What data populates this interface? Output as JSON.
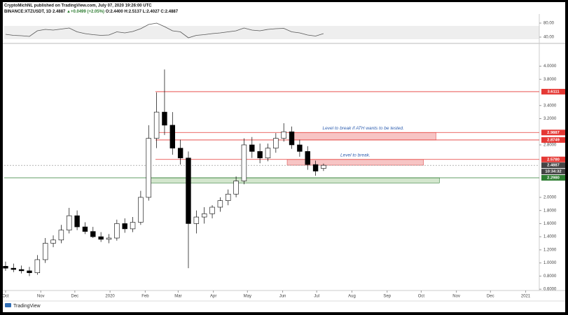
{
  "header": {
    "publisher": "CryptoMichNL published on TradingView.com, July 07, 2020 19:26:00 UTC",
    "symbol": "BINANCE:XTZUSDT, 1D",
    "last": "2.4887",
    "change": "▲+0.0499 (+2.05%)",
    "ohlc": "O:2.4400 H:2.5137 L:2.4027 C:2.4887"
  },
  "footer": {
    "brand": "TradingView"
  },
  "chart_data": [
    {
      "type": "line",
      "color": "#555555",
      "x": [
        0,
        7,
        14,
        21,
        28,
        35,
        42,
        49,
        56,
        63,
        70,
        77,
        84,
        91,
        98,
        105,
        112,
        119,
        126,
        133,
        140,
        147,
        154,
        161,
        168,
        175,
        182,
        189,
        196,
        203,
        210,
        217,
        224,
        231,
        238,
        245,
        252,
        259,
        266,
        273,
        280
      ],
      "values": [
        48,
        45,
        44,
        42,
        58,
        62,
        60,
        63,
        66,
        55,
        50,
        47,
        45,
        46,
        55,
        52,
        56,
        64,
        76,
        80,
        70,
        58,
        55,
        38,
        45,
        47,
        50,
        52,
        55,
        58,
        66,
        60,
        58,
        62,
        64,
        65,
        55,
        52,
        46,
        43,
        50
      ],
      "xlim": [
        -1.2,
        470
      ],
      "ylim": [
        26,
        102
      ],
      "yticks": [
        {
          "value": 80,
          "label": "80.00"
        },
        {
          "value": 40,
          "label": "40.00"
        }
      ]
    },
    {
      "type": "candlestick",
      "up_color": "#ffffff",
      "down_color": "#000000",
      "x": [
        0,
        7,
        14,
        21,
        28,
        35,
        42,
        49,
        56,
        63,
        70,
        77,
        84,
        91,
        98,
        105,
        112,
        119,
        126,
        133,
        140,
        147,
        154,
        161,
        168,
        175,
        182,
        189,
        196,
        203,
        210,
        217,
        224,
        231,
        238,
        245,
        252,
        259,
        266,
        273,
        280
      ],
      "open": [
        0.95,
        0.92,
        0.9,
        0.88,
        0.85,
        1.05,
        1.3,
        1.35,
        1.5,
        1.72,
        1.55,
        1.48,
        1.4,
        1.36,
        1.38,
        1.6,
        1.52,
        1.62,
        2.0,
        2.9,
        3.3,
        3.1,
        2.75,
        2.6,
        1.6,
        1.7,
        1.75,
        1.85,
        1.95,
        2.05,
        2.25,
        2.8,
        2.7,
        2.6,
        2.75,
        2.9,
        3.0,
        2.8,
        2.7,
        2.5,
        2.44
      ],
      "high": [
        1.02,
        0.99,
        0.96,
        0.94,
        1.12,
        1.38,
        1.42,
        1.58,
        1.84,
        1.8,
        1.62,
        1.55,
        1.47,
        1.44,
        1.66,
        1.68,
        1.7,
        2.1,
        3.1,
        3.6,
        3.95,
        3.3,
        2.88,
        2.7,
        1.8,
        1.85,
        1.88,
        2.0,
        2.12,
        2.32,
        2.9,
        2.92,
        2.82,
        2.82,
        2.98,
        3.13,
        3.08,
        2.88,
        2.78,
        2.56,
        2.5137
      ],
      "low": [
        0.88,
        0.86,
        0.84,
        0.8,
        0.82,
        1.0,
        1.24,
        1.3,
        1.45,
        1.5,
        1.44,
        1.38,
        1.32,
        1.3,
        1.34,
        1.46,
        1.47,
        1.58,
        1.95,
        2.75,
        2.95,
        2.65,
        2.5,
        0.92,
        1.45,
        1.6,
        1.68,
        1.78,
        1.88,
        2.0,
        2.2,
        2.6,
        2.52,
        2.55,
        2.68,
        2.85,
        2.74,
        2.62,
        2.42,
        2.33,
        2.4027
      ],
      "close": [
        0.92,
        0.9,
        0.88,
        0.85,
        1.05,
        1.3,
        1.35,
        1.5,
        1.72,
        1.55,
        1.48,
        1.4,
        1.36,
        1.38,
        1.6,
        1.52,
        1.62,
        2.0,
        2.9,
        3.3,
        3.1,
        2.75,
        2.6,
        1.6,
        1.7,
        1.75,
        1.85,
        1.95,
        2.05,
        2.25,
        2.8,
        2.7,
        2.6,
        2.75,
        2.9,
        3.0,
        2.8,
        2.7,
        2.5,
        2.4,
        2.4887
      ],
      "xlim": [
        -1.2,
        470
      ],
      "xticks": [
        {
          "value": 0,
          "label": "Oct"
        },
        {
          "value": 31,
          "label": "Nov"
        },
        {
          "value": 61,
          "label": "Dec"
        },
        {
          "value": 92,
          "label": "2020"
        },
        {
          "value": 123,
          "label": "Feb"
        },
        {
          "value": 152,
          "label": "Mar"
        },
        {
          "value": 183,
          "label": "Apr"
        },
        {
          "value": 213,
          "label": "May"
        },
        {
          "value": 244,
          "label": "Jun"
        },
        {
          "value": 274,
          "label": "Jul"
        },
        {
          "value": 305,
          "label": "Aug"
        },
        {
          "value": 336,
          "label": "Sep"
        },
        {
          "value": 366,
          "label": "Oct"
        },
        {
          "value": 397,
          "label": "Nov"
        },
        {
          "value": 427,
          "label": "Dec"
        },
        {
          "value": 458,
          "label": "2021"
        }
      ],
      "ylim": [
        0.58,
        4.347
      ],
      "yticks": [
        {
          "value": 4.0,
          "label": "4.0000"
        },
        {
          "value": 3.8,
          "label": "3.8000"
        },
        {
          "value": 3.4,
          "label": "3.4000"
        },
        {
          "value": 3.2,
          "label": "3.2000"
        },
        {
          "value": 2.8,
          "label": "2.8000"
        },
        {
          "value": 2.0,
          "label": "2.0000"
        },
        {
          "value": 1.8,
          "label": "1.8000"
        },
        {
          "value": 1.6,
          "label": "1.6000"
        },
        {
          "value": 1.4,
          "label": "1.4000"
        },
        {
          "value": 1.2,
          "label": "1.2000"
        },
        {
          "value": 1.0,
          "label": "1.0000"
        },
        {
          "value": 0.8,
          "label": "0.8000"
        },
        {
          "value": 0.6,
          "label": "0.6000"
        }
      ],
      "levels": [
        {
          "value": 3.6111,
          "label": "3.6111",
          "color": "#e53935",
          "start": 132
        },
        {
          "value": 2.9887,
          "label": "2.9887",
          "color": "#e53935",
          "start": 132
        },
        {
          "value": 2.8749,
          "label": "2.8749",
          "color": "#e53935",
          "start": 132
        },
        {
          "value": 2.578,
          "label": "2.5780",
          "color": "#e53935",
          "start": 132
        },
        {
          "value": 2.298,
          "label": "2.2980",
          "color": "#2e7d32"
        }
      ],
      "last_price": {
        "value": 2.4887,
        "label": "2.4887",
        "countdown": "10:34:32",
        "color": "#444444"
      },
      "zones": [
        {
          "top": 2.9887,
          "bottom": 2.8749,
          "start": 251,
          "end": 379,
          "color": "#f5b5b5",
          "border": "#e05050",
          "note": "Level to break if ATH wants to be tested."
        },
        {
          "top": 2.578,
          "bottom": 2.49,
          "start": 248,
          "end": 368,
          "color": "#f5b5b5",
          "border": "#e05050",
          "note": "Level to break."
        },
        {
          "top": 2.298,
          "bottom": 2.22,
          "start": 127,
          "end": 382,
          "color": "#c8e0c0",
          "border": "#2e7d32"
        }
      ]
    }
  ]
}
